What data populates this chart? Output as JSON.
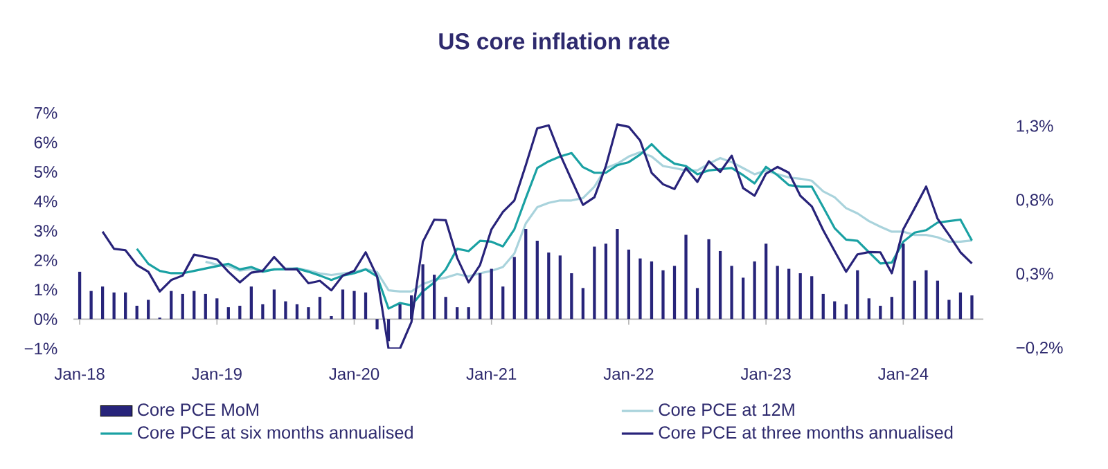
{
  "chart_data": {
    "type": "line",
    "title": "US core inflation rate",
    "x": [
      "2018-01",
      "2018-02",
      "2018-03",
      "2018-04",
      "2018-05",
      "2018-06",
      "2018-07",
      "2018-08",
      "2018-09",
      "2018-10",
      "2018-11",
      "2018-12",
      "2019-01",
      "2019-02",
      "2019-03",
      "2019-04",
      "2019-05",
      "2019-06",
      "2019-07",
      "2019-08",
      "2019-09",
      "2019-10",
      "2019-11",
      "2019-12",
      "2020-01",
      "2020-02",
      "2020-03",
      "2020-04",
      "2020-05",
      "2020-06",
      "2020-07",
      "2020-08",
      "2020-09",
      "2020-10",
      "2020-11",
      "2020-12",
      "2021-01",
      "2021-02",
      "2021-03",
      "2021-04",
      "2021-05",
      "2021-06",
      "2021-07",
      "2021-08",
      "2021-09",
      "2021-10",
      "2021-11",
      "2021-12",
      "2022-01",
      "2022-02",
      "2022-03",
      "2022-04",
      "2022-05",
      "2022-06",
      "2022-07",
      "2022-08",
      "2022-09",
      "2022-10",
      "2022-11",
      "2022-12",
      "2023-01",
      "2023-02",
      "2023-03",
      "2023-04",
      "2023-05",
      "2023-06",
      "2023-07",
      "2023-08",
      "2023-09",
      "2023-10",
      "2023-11",
      "2023-12",
      "2024-01",
      "2024-02",
      "2024-03",
      "2024-04",
      "2024-05",
      "2024-06",
      "2024-07"
    ],
    "series": [
      {
        "name": "Core PCE MoM",
        "type": "bar",
        "axis": "y2",
        "color": "#27247a",
        "values": [
          0.32,
          0.19,
          0.22,
          0.18,
          0.18,
          0.09,
          0.13,
          0.01,
          0.19,
          0.17,
          0.19,
          0.17,
          0.14,
          0.08,
          0.09,
          0.22,
          0.1,
          0.2,
          0.12,
          0.1,
          0.08,
          0.15,
          0.02,
          0.2,
          0.19,
          0.18,
          -0.07,
          -0.15,
          0.1,
          0.16,
          0.37,
          0.3,
          0.15,
          0.08,
          0.08,
          0.31,
          0.34,
          0.22,
          0.42,
          0.61,
          0.53,
          0.45,
          0.43,
          0.31,
          0.21,
          0.49,
          0.51,
          0.61,
          0.47,
          0.41,
          0.39,
          0.33,
          0.36,
          0.57,
          0.21,
          0.54,
          0.46,
          0.36,
          0.28,
          0.39,
          0.51,
          0.36,
          0.34,
          0.31,
          0.29,
          0.17,
          0.12,
          0.1,
          0.33,
          0.14,
          0.09,
          0.15,
          0.51,
          0.26,
          0.33,
          0.26,
          0.13,
          0.18,
          0.16
        ]
      },
      {
        "name": "Core PCE at 12M",
        "color": "#a9d3dc",
        "values": [
          null,
          null,
          null,
          null,
          null,
          null,
          null,
          null,
          null,
          null,
          null,
          1.95,
          1.85,
          1.8,
          1.65,
          1.7,
          1.65,
          1.68,
          1.72,
          1.72,
          1.65,
          1.55,
          1.5,
          1.55,
          1.6,
          1.7,
          1.6,
          0.98,
          0.94,
          0.94,
          1.19,
          1.33,
          1.41,
          1.53,
          1.45,
          1.56,
          1.64,
          1.77,
          2.23,
          3.25,
          3.8,
          3.95,
          4.03,
          4.03,
          4.11,
          4.5,
          5.13,
          5.28,
          5.52,
          5.67,
          5.52,
          5.2,
          5.13,
          5.05,
          5.05,
          5.28,
          5.47,
          5.33,
          5.13,
          4.92,
          5.05,
          4.92,
          4.81,
          4.77,
          4.7,
          4.34,
          4.14,
          3.77,
          3.59,
          3.33,
          3.14,
          2.97,
          2.97,
          2.86,
          2.86,
          2.78,
          2.63,
          2.63,
          2.67
        ]
      },
      {
        "name": "Core PCE at six months annualised",
        "color": "#1aa1a3",
        "values": [
          null,
          null,
          null,
          null,
          null,
          2.39,
          1.88,
          1.64,
          1.56,
          1.56,
          1.64,
          1.72,
          1.8,
          1.88,
          1.69,
          1.77,
          1.61,
          1.69,
          1.69,
          1.72,
          1.61,
          1.48,
          1.33,
          1.48,
          1.56,
          1.69,
          1.45,
          0.36,
          0.55,
          0.47,
          0.94,
          1.25,
          1.69,
          2.39,
          2.31,
          2.66,
          2.63,
          2.47,
          3.05,
          4.11,
          5.13,
          5.36,
          5.52,
          5.64,
          5.16,
          4.97,
          4.97,
          5.23,
          5.33,
          5.59,
          5.94,
          5.55,
          5.28,
          5.2,
          4.92,
          5.05,
          5.09,
          5.13,
          4.89,
          4.61,
          5.17,
          4.89,
          4.55,
          4.5,
          4.5,
          3.8,
          3.09,
          2.7,
          2.66,
          2.27,
          1.89,
          1.92,
          2.63,
          2.94,
          3.02,
          3.28,
          3.33,
          3.38,
          2.67
        ]
      },
      {
        "name": "Core PCE at three months annualised",
        "color": "#28237a",
        "values": [
          null,
          null,
          2.97,
          2.39,
          2.34,
          1.84,
          1.61,
          0.94,
          1.33,
          1.48,
          2.19,
          2.11,
          2.03,
          1.61,
          1.25,
          1.58,
          1.64,
          2.11,
          1.69,
          1.69,
          1.22,
          1.3,
          0.98,
          1.48,
          1.64,
          2.27,
          1.45,
          -1.0,
          -1.0,
          -0.1,
          2.63,
          3.38,
          3.36,
          2.08,
          1.25,
          1.84,
          3.05,
          3.64,
          4.03,
          5.23,
          6.48,
          6.58,
          5.59,
          4.73,
          3.88,
          4.14,
          5.2,
          6.61,
          6.53,
          6.06,
          4.97,
          4.58,
          4.42,
          5.13,
          4.66,
          5.36,
          5.0,
          5.55,
          4.45,
          4.19,
          4.94,
          5.17,
          4.97,
          4.19,
          3.83,
          3.02,
          2.31,
          1.61,
          2.2,
          2.28,
          2.27,
          1.56,
          3.05,
          3.77,
          4.5,
          3.41,
          2.86,
          2.27,
          1.89
        ]
      }
    ],
    "xlim": [
      "2017-12-15",
      "2024-08-01"
    ],
    "xticks": [
      {
        "value": "2018-01-01",
        "label": "Jan-18"
      },
      {
        "value": "2019-01-01",
        "label": "Jan-19"
      },
      {
        "value": "2020-01-01",
        "label": "Jan-20"
      },
      {
        "value": "2021-01-01",
        "label": "Jan-21"
      },
      {
        "value": "2022-01-01",
        "label": "Jan-22"
      },
      {
        "value": "2023-01-01",
        "label": "Jan-23"
      },
      {
        "value": "2024-01-01",
        "label": "Jan-24"
      }
    ],
    "ylim": [
      -1,
      7
    ],
    "yticks": [
      {
        "value": -1,
        "label": "−1%"
      },
      {
        "value": 0,
        "label": "0%"
      },
      {
        "value": 1,
        "label": "1%"
      },
      {
        "value": 2,
        "label": "2%"
      },
      {
        "value": 3,
        "label": "3%"
      },
      {
        "value": 4,
        "label": "4%"
      },
      {
        "value": 5,
        "label": "5%"
      },
      {
        "value": 6,
        "label": "6%"
      },
      {
        "value": 7,
        "label": "7%"
      }
    ],
    "y2lim": [
      -0.2,
      1.3
    ],
    "y2ticks": [
      {
        "value": -0.2,
        "label": "−0,2%"
      },
      {
        "value": 0.3,
        "label": "0,3%"
      },
      {
        "value": 0.8,
        "label": "0,8%"
      },
      {
        "value": 1.3,
        "label": "1,3%"
      }
    ],
    "legend": "bottom"
  }
}
